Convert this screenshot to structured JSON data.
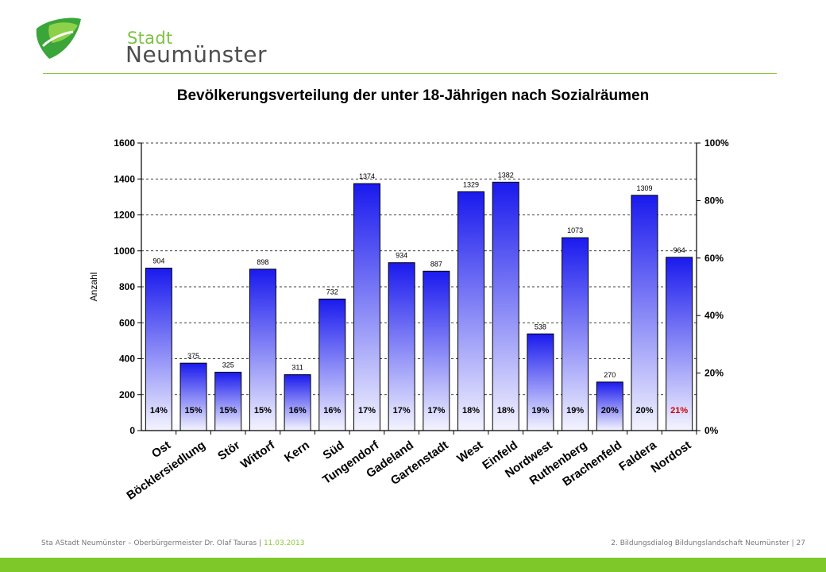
{
  "header": {
    "logo_small": "Stadt",
    "logo_big": "Neumünster",
    "brand_green": "#7dc242",
    "brand_dark_green": "#3aa63a"
  },
  "footer": {
    "left_text": "Sta AStadt Neumünster – Oberbürgermeister Dr. Olaf Tauras",
    "separator": "|",
    "date": "11.03.2013",
    "right_text": "2. Bildungsdialog Bildungslandschaft Neumünster",
    "page": "27"
  },
  "chart_data": {
    "type": "bar",
    "title": "Bevölkerungsverteilung der unter 18-Jährigen nach Sozialräumen",
    "ylabel": "Anzahl",
    "ylim": [
      0,
      1600
    ],
    "yticks": [
      "0",
      "200",
      "400",
      "600",
      "800",
      "1000",
      "1200",
      "1400",
      "1600"
    ],
    "y2lim": [
      0,
      100
    ],
    "y2ticks": [
      "0%",
      "20%",
      "40%",
      "60%",
      "80%",
      "100%"
    ],
    "grid": true,
    "legend": "none",
    "categories": [
      "Ost",
      "Böcklersiedlung",
      "Stör",
      "Wittorf",
      "Kern",
      "Süd",
      "Tungendorf",
      "Gadeland",
      "Gartenstadt",
      "West",
      "Einfeld",
      "Nordwest",
      "Ruthenberg",
      "Brachenfeld",
      "Faldera",
      "Nordost"
    ],
    "values": [
      904,
      375,
      325,
      898,
      311,
      732,
      1374,
      934,
      887,
      1329,
      1382,
      538,
      1073,
      270,
      1309,
      964
    ],
    "value_labels": [
      "904",
      "375",
      "325",
      "898",
      "311",
      "732",
      "1374",
      "934",
      "887",
      "1329",
      "1382",
      "538",
      "1073",
      "270",
      "1309",
      "964"
    ],
    "percent_labels": [
      "14%",
      "15%",
      "15%",
      "15%",
      "16%",
      "16%",
      "17%",
      "17%",
      "17%",
      "18%",
      "18%",
      "19%",
      "19%",
      "20%",
      "20%",
      "21%"
    ],
    "percent_highlight_index": 15,
    "colors": {
      "bar_top": "#1a1aee",
      "bar_bottom": "#f4f4ff",
      "highlight_text": "#cc0000",
      "axis": "#000000"
    }
  }
}
